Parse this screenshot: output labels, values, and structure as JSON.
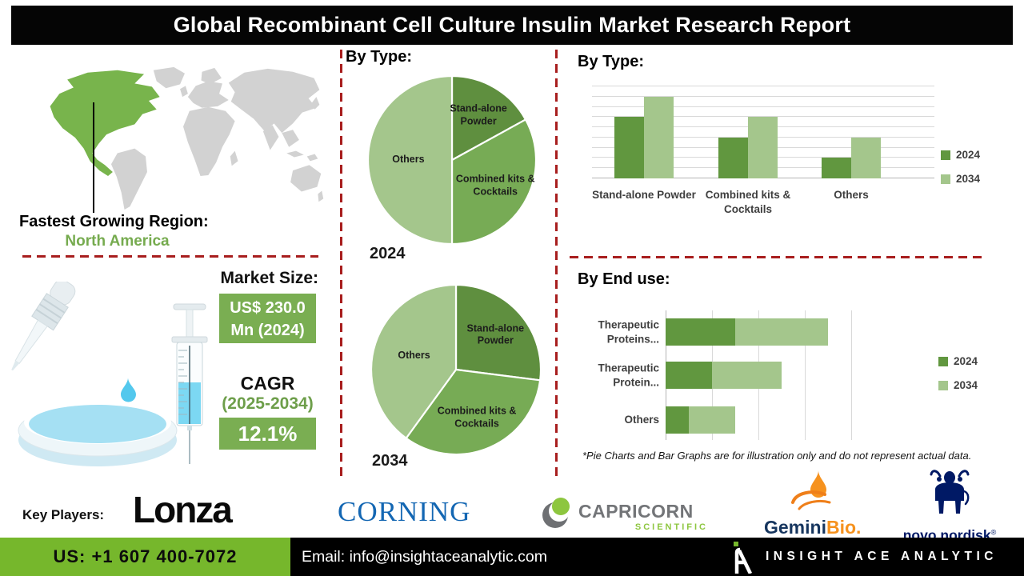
{
  "title": "Global Recombinant Cell Culture Insulin Market Research Report",
  "colors": {
    "pie_dark_green": "#5f8f3f",
    "pie_mid_green": "#77ab55",
    "pie_light_green": "#a4c68c",
    "bar_dark_green": "#61973f",
    "bar_light_green": "#a4c68c",
    "map_green": "#78b44c",
    "map_gray": "#d2d2d2",
    "dash_red": "#a81e1e",
    "box_green": "#7aae52",
    "footer_green": "#76b72c",
    "region_text_green": "#76ab4f",
    "corning_blue": "#1467b3",
    "novo_blue": "#001965",
    "capricorn_gray": "#737578",
    "capricorn_green": "#8dc63f",
    "gemini_navy": "#16355e",
    "gemini_orange": "#f6921e"
  },
  "region": {
    "heading": "Fastest Growing Region:",
    "value": "North America"
  },
  "market": {
    "heading": "Market Size:",
    "size_line1": "US$ 230.0",
    "size_line2": "Mn (2024)",
    "cagr_label": "CAGR",
    "cagr_period": "(2025-2034)",
    "cagr_value": "12.1%"
  },
  "mid": {
    "heading": "By Type:"
  },
  "right_top": {
    "heading": "By Type:"
  },
  "right_bottom": {
    "heading": "By End use:"
  },
  "footnote": "*Pie Charts and Bar Graphs are for illustration only and do not represent actual data.",
  "key_players": {
    "label": "Key Players:",
    "lonza": "Lonza",
    "corning": "CORNING",
    "capricorn": "CAPRICORN",
    "capricorn_sub": "SCIENTIFIC",
    "gemini": "Gemini",
    "gemini_bio": "Bio.",
    "novo": "novo nordisk",
    "novo_reg": "®"
  },
  "footer": {
    "phone": "US: +1 607 400-7072",
    "email": "Email: info@insightaceanalytic.com",
    "brand": "INSIGHT ACE ANALYTIC"
  },
  "chart_data": [
    {
      "type": "pie",
      "title": "By Type:",
      "year_label": "2024",
      "start_angle": "top",
      "direction": "clockwise",
      "unit": "illustrative percent",
      "slices": [
        {
          "label": "Stand-alone Powder",
          "value": 17,
          "color": "#5f8f3f",
          "label_r": 0.62,
          "label_w": 95
        },
        {
          "label": "Combined kits & Cocktails",
          "value": 33,
          "color": "#77ab55",
          "label_r": 0.6,
          "label_w": 108
        },
        {
          "label": "Others",
          "value": 50,
          "color": "#a4c68c",
          "label_r": 0.52,
          "label_w": 70
        }
      ]
    },
    {
      "type": "pie",
      "title": "By Type:",
      "year_label": "2034",
      "start_angle": "top",
      "direction": "clockwise",
      "unit": "illustrative percent",
      "slices": [
        {
          "label": "Stand-alone Powder",
          "value": 27,
          "color": "#5f8f3f",
          "label_r": 0.62,
          "label_w": 95
        },
        {
          "label": "Combined kits & Cocktails",
          "value": 33,
          "color": "#77ab55",
          "label_r": 0.62,
          "label_w": 108
        },
        {
          "label": "Others",
          "value": 40,
          "color": "#a4c68c",
          "label_r": 0.52,
          "label_w": 70
        }
      ]
    },
    {
      "type": "bar",
      "title": "By Type:",
      "orientation": "vertical",
      "categories": [
        "Stand-alone Powder",
        "Combined kits & Cocktails",
        "Others"
      ],
      "series": [
        {
          "name": "2024",
          "color": "#61973f",
          "values": [
            6,
            4,
            2
          ]
        },
        {
          "name": "2034",
          "color": "#a4c68c",
          "values": [
            8,
            6,
            4
          ]
        }
      ],
      "ylim": [
        0,
        9
      ],
      "gridlines": true,
      "legend_position": "right",
      "unit": "illustrative relative units"
    },
    {
      "type": "bar",
      "title": "By End use:",
      "orientation": "horizontal",
      "stacked": true,
      "categories": [
        "Therapeutic Proteins...",
        "Therapeutic Protein...",
        "Others"
      ],
      "series": [
        {
          "name": "2024",
          "color": "#61973f",
          "values": [
            1.5,
            1.0,
            0.5
          ]
        },
        {
          "name": "2034",
          "color": "#a4c68c",
          "values": [
            2.0,
            1.5,
            1.0
          ]
        }
      ],
      "xlim": [
        0,
        4
      ],
      "gridlines": true,
      "legend_position": "right",
      "unit": "illustrative relative units"
    }
  ]
}
